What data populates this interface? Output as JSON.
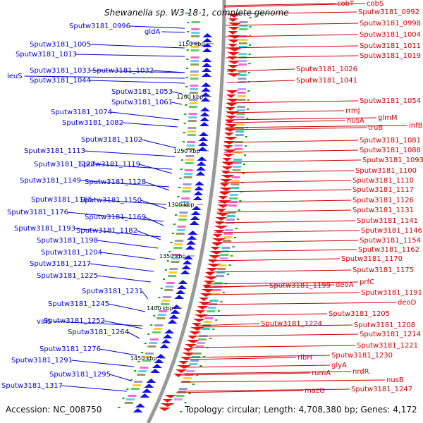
{
  "title": "Shewanella sp. W3-18-1, complete genome",
  "footer": {
    "accession": "Accession: NC_008750",
    "topology": "Topology: circular; Length: 4,708,380 bp; Genes: 4,172"
  },
  "colors": {
    "forward_strand": "#0000cc",
    "reverse_strand": "#cc0000",
    "backbone": "#999999",
    "tick_marks": "#00aa00"
  },
  "ticks": [
    "1150 kbp",
    "1200 kbp",
    "1250 kbp",
    "1300 kbp",
    "1350 kbp",
    "1400 kbp",
    "1450 kbp"
  ],
  "left_labels": [
    "Sputw3181_0996",
    "gldA",
    "Sputw3181_1005",
    "Sputw3181_1013",
    "Sputw3181_1033",
    "Sputw3181_1032",
    "leuS",
    "Sputw3181_1044",
    "Sputw3181_1053",
    "Sputw3181_1061",
    "Sputw3181_1074",
    "Sputw3181_1082",
    "Sputw3181_1102",
    "Sputw3181_1113",
    "Sputw3181_1127",
    "Sputw3181_1119",
    "Sputw3181_1149",
    "Sputw3181_1128",
    "Sputw3181_1165",
    "Sputw3181_1150",
    "Sputw3181_1176",
    "Sputw3181_1169",
    "Sputw3181_1193",
    "Sputw3181_1182",
    "Sputw3181_1198",
    "Sputw3181_1204",
    "Sputw3181_1217",
    "Sputw3181_1225",
    "Sputw3181_1231",
    "Sputw3181_1245",
    "valS",
    "Sputw3181_1252",
    "Sputw3181_1264",
    "Sputw3181_1276",
    "Sputw3181_1291",
    "Sputw3181_1295",
    "Sputw3181_1317"
  ],
  "right_labels": [
    "cobT",
    "cobS",
    "Sputw3181_0992",
    "Sputw3181_0998",
    "Sputw3181_1004",
    "Sputw3181_1011",
    "Sputw3181_1019",
    "Sputw3181_1026",
    "Sputw3181_1041",
    "Sputw3181_1054",
    "rrmJ",
    "glmM",
    "nusA",
    "infB",
    "truB",
    "Sputw3181_1081",
    "Sputw3181_1088",
    "Sputw3181_1093",
    "Sputw3181_1100",
    "Sputw3181_1110",
    "Sputw3181_1117",
    "Sputw3181_1126",
    "Sputw3181_1131",
    "Sputw3181_1141",
    "Sputw3181_1146",
    "Sputw3181_1154",
    "Sputw3181_1162",
    "Sputw3181_1170",
    "Sputw3181_1175",
    "prfC",
    "Sputw3181_1199",
    "deoA",
    "Sputw3181_1191",
    "deoD",
    "Sputw3181_1205",
    "Sputw3181_1224",
    "Sputw3181_1208",
    "Sputw3181_1214",
    "Sputw3181_1221",
    "Sputw3181_1230",
    "ribH",
    "glyA",
    "nrdR",
    "rumA",
    "nusB",
    "mazG",
    "Sputw3181_1247"
  ]
}
